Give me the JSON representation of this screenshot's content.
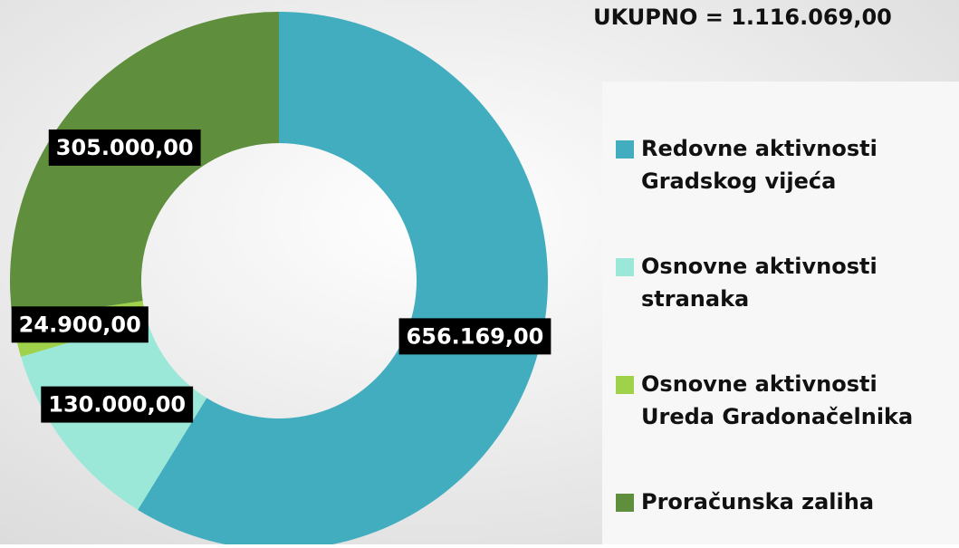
{
  "chart_data": {
    "type": "donut",
    "title": "UKUPNO = 1.116.069,00",
    "categories": [
      "Redovne aktivnosti Gradskog vijeća",
      "Osnovne aktivnosti stranaka",
      "Osnovne aktivnosti Ureda Gradonačelnika",
      "Proračunska zaliha"
    ],
    "values": [
      656169,
      130000,
      24900,
      305000
    ],
    "value_labels": [
      "656.169,00",
      "130.000,00",
      "24.900,00",
      "305.000,00"
    ],
    "colors": [
      "#42adbf",
      "#9be8d9",
      "#9fd14b",
      "#5f8f3d"
    ],
    "legend": "right"
  }
}
